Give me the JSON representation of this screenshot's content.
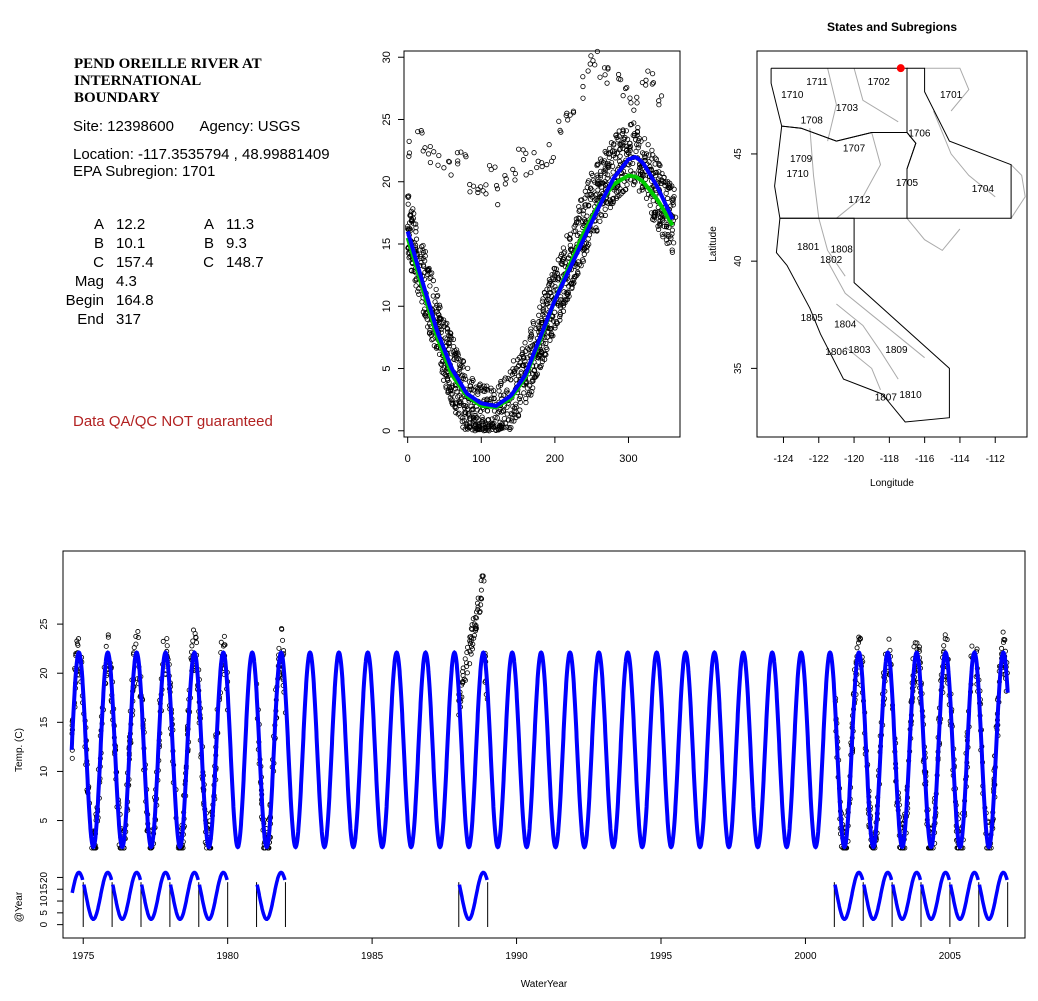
{
  "info": {
    "title": "PEND OREILLE RIVER AT INTERNATIONAL BOUNDARY",
    "title_lines": [
      "PEND OREILLE RIVER AT",
      "INTERNATIONAL",
      "BOUNDARY"
    ],
    "site": "Site: 12398600",
    "agency": "Agency: USGS",
    "location": "Location: -117.3535794 , 48.99881409",
    "epa_subregion": "EPA Subregion: 1701",
    "disclaimer": "Data QA/QC NOT guaranteed",
    "disclaimer_color": "#b22222"
  },
  "stats": {
    "left": [
      {
        "label": "A",
        "value": "12.2"
      },
      {
        "label": "B",
        "value": "10.1"
      },
      {
        "label": "C",
        "value": "157.4"
      },
      {
        "label": "Mag",
        "value": "4.3"
      },
      {
        "label": "Begin",
        "value": "164.8"
      },
      {
        "label": "End",
        "value": "317"
      }
    ],
    "right": [
      {
        "label": "A",
        "value": "11.3"
      },
      {
        "label": "B",
        "value": "9.3"
      },
      {
        "label": "C",
        "value": "148.7"
      }
    ]
  },
  "chart_data": [
    {
      "id": "day-of-year-scatter",
      "type": "scatter",
      "title": "",
      "xlabel": "",
      "ylabel": "",
      "xlim": [
        -5,
        370
      ],
      "ylim": [
        -0.5,
        30.5
      ],
      "xticks": [
        0,
        100,
        200,
        300
      ],
      "yticks": [
        0,
        5,
        10,
        15,
        20,
        25,
        30
      ],
      "series": [
        {
          "kind": "points",
          "color": "#000000",
          "description_values": "daily temperature by day of water year",
          "x": [
            0,
            10,
            20,
            30,
            40,
            50,
            60,
            70,
            80,
            90,
            100,
            110,
            120,
            130,
            140,
            150,
            160,
            170,
            180,
            190,
            200,
            210,
            220,
            230,
            240,
            250,
            260,
            270,
            280,
            290,
            300,
            310,
            320,
            330,
            340,
            350,
            360
          ],
          "y": [
            16.5,
            14.5,
            12.5,
            10.5,
            8.5,
            6.5,
            5.0,
            3.5,
            2.5,
            1.5,
            1.0,
            0.8,
            1.0,
            1.5,
            2.5,
            3.5,
            4.5,
            6.0,
            7.5,
            9.0,
            10.5,
            12.0,
            13.5,
            15.0,
            16.5,
            18.0,
            19.0,
            20.0,
            21.0,
            21.5,
            22.0,
            22.0,
            21.0,
            20.0,
            19.0,
            18.0,
            17.0
          ]
        },
        {
          "kind": "points-outliers",
          "color": "#000000",
          "x": [
            5,
            15,
            25,
            35,
            45,
            55,
            65,
            75,
            85,
            95,
            105,
            115,
            125,
            135,
            145,
            155,
            165,
            175,
            185,
            195,
            205,
            215,
            225,
            235,
            245,
            255,
            265,
            275,
            285,
            295,
            305,
            315,
            325,
            335,
            345
          ],
          "y": [
            23.0,
            23.5,
            23.0,
            22.5,
            21.5,
            21.0,
            22.0,
            21.5,
            20.0,
            19.0,
            19.5,
            20.5,
            19.0,
            20.0,
            21.0,
            22.0,
            21.5,
            22.0,
            21.0,
            22.5,
            24.0,
            25.0,
            26.0,
            27.5,
            29.5,
            30.0,
            29.0,
            28.5,
            29.0,
            27.5,
            26.0,
            27.0,
            28.5,
            28.0,
            26.0
          ]
        },
        {
          "kind": "line",
          "color": "#0000ff",
          "x": [
            0,
            20,
            40,
            60,
            80,
            100,
            120,
            140,
            160,
            180,
            200,
            220,
            240,
            260,
            280,
            300,
            310,
            320,
            340,
            360
          ],
          "y": [
            16.0,
            12.0,
            8.0,
            5.0,
            3.0,
            2.2,
            2.0,
            2.8,
            4.5,
            7.5,
            10.5,
            13.0,
            15.5,
            18.0,
            20.3,
            21.8,
            22.0,
            21.5,
            19.5,
            17.0
          ]
        },
        {
          "kind": "line",
          "color": "#00cc00",
          "x": [
            0,
            20,
            40,
            60,
            80,
            100,
            120,
            140,
            160,
            180,
            200,
            220,
            240,
            260,
            280,
            300,
            310,
            320,
            340,
            360
          ],
          "y": [
            15.5,
            11.5,
            7.5,
            4.5,
            2.8,
            2.0,
            1.9,
            2.6,
            4.3,
            7.3,
            10.5,
            13.3,
            16.0,
            18.2,
            19.8,
            20.5,
            20.4,
            20.0,
            18.5,
            16.5
          ]
        }
      ]
    },
    {
      "id": "states-subregions-map",
      "type": "map",
      "title": "States and Subregions",
      "xlabel": "Longitude",
      "ylabel": "Latitude",
      "xlim": [
        -125.5,
        -110.2
      ],
      "ylim": [
        31.8,
        49.8
      ],
      "xticks": [
        -124,
        -122,
        -120,
        -118,
        -116,
        -114,
        -112
      ],
      "yticks": [
        35,
        40,
        45
      ],
      "site_marker": {
        "lon": -117.3535794,
        "lat": 48.99881409,
        "color": "#ff0000"
      },
      "region_labels": [
        {
          "label": "1711",
          "lon": -122.1,
          "lat": 48.4
        },
        {
          "label": "1710",
          "lon": -123.5,
          "lat": 47.8
        },
        {
          "label": "1702",
          "lon": -118.6,
          "lat": 48.4
        },
        {
          "label": "1701",
          "lon": -114.5,
          "lat": 47.8
        },
        {
          "label": "1703",
          "lon": -120.4,
          "lat": 47.2
        },
        {
          "label": "1708",
          "lon": -122.4,
          "lat": 46.6
        },
        {
          "label": "1706",
          "lon": -116.3,
          "lat": 46.0
        },
        {
          "label": "1707",
          "lon": -120.0,
          "lat": 45.3
        },
        {
          "label": "1709",
          "lon": -123.0,
          "lat": 44.8
        },
        {
          "label": "1710",
          "lon": -123.2,
          "lat": 44.1
        },
        {
          "label": "1705",
          "lon": -117.0,
          "lat": 43.7
        },
        {
          "label": "1704",
          "lon": -112.7,
          "lat": 43.4
        },
        {
          "label": "1712",
          "lon": -119.7,
          "lat": 42.9
        },
        {
          "label": "1801",
          "lon": -122.6,
          "lat": 40.7
        },
        {
          "label": "1808",
          "lon": -120.7,
          "lat": 40.6
        },
        {
          "label": "1802",
          "lon": -121.3,
          "lat": 40.1
        },
        {
          "label": "1805",
          "lon": -122.4,
          "lat": 37.4
        },
        {
          "label": "1804",
          "lon": -120.5,
          "lat": 37.1
        },
        {
          "label": "1806",
          "lon": -121.0,
          "lat": 35.8
        },
        {
          "label": "1803",
          "lon": -119.7,
          "lat": 35.9
        },
        {
          "label": "1809",
          "lon": -117.6,
          "lat": 35.9
        },
        {
          "label": "1807",
          "lon": -118.2,
          "lat": 33.7
        },
        {
          "label": "1810",
          "lon": -116.8,
          "lat": 33.8
        }
      ]
    },
    {
      "id": "timeseries",
      "type": "line",
      "title": "",
      "xlabel": "WaterYear",
      "ylabel": "Temp. (C)",
      "ylabel2": "@Year",
      "xlim": [
        1974.3,
        2007.6
      ],
      "ylim_upper": [
        2.0,
        30.0
      ],
      "ylim_lower": [
        -1.0,
        24.0
      ],
      "xticks": [
        1975,
        1980,
        1985,
        1990,
        1995,
        2000,
        2005
      ],
      "yticks_upper": [
        5,
        10,
        15,
        20,
        25
      ],
      "yticks_lower": [
        0,
        5,
        10,
        15,
        20
      ],
      "fit": {
        "mean": 12.2,
        "amplitude": 9.9,
        "peak_fraction": 0.85,
        "color": "#0000ff",
        "start": 1974.6,
        "end": 2007.0
      },
      "observed_periods": [
        [
          1974.6,
          1982.0
        ],
        [
          1988.0,
          1989.0
        ],
        [
          2001.0,
          2007.0
        ]
      ],
      "observed_gaps": [
        [
          1980.0,
          1981.0
        ]
      ],
      "spike_1988": {
        "range": [
          1988.0,
          1988.9
        ],
        "min": 17.0,
        "max": 30.0
      },
      "lower_panel_year_bars": [
        1975,
        1976,
        1977,
        1978,
        1979,
        1980,
        1981,
        1982,
        1988,
        1989,
        2001,
        2002,
        2003,
        2004,
        2005,
        2006,
        2007
      ]
    }
  ]
}
